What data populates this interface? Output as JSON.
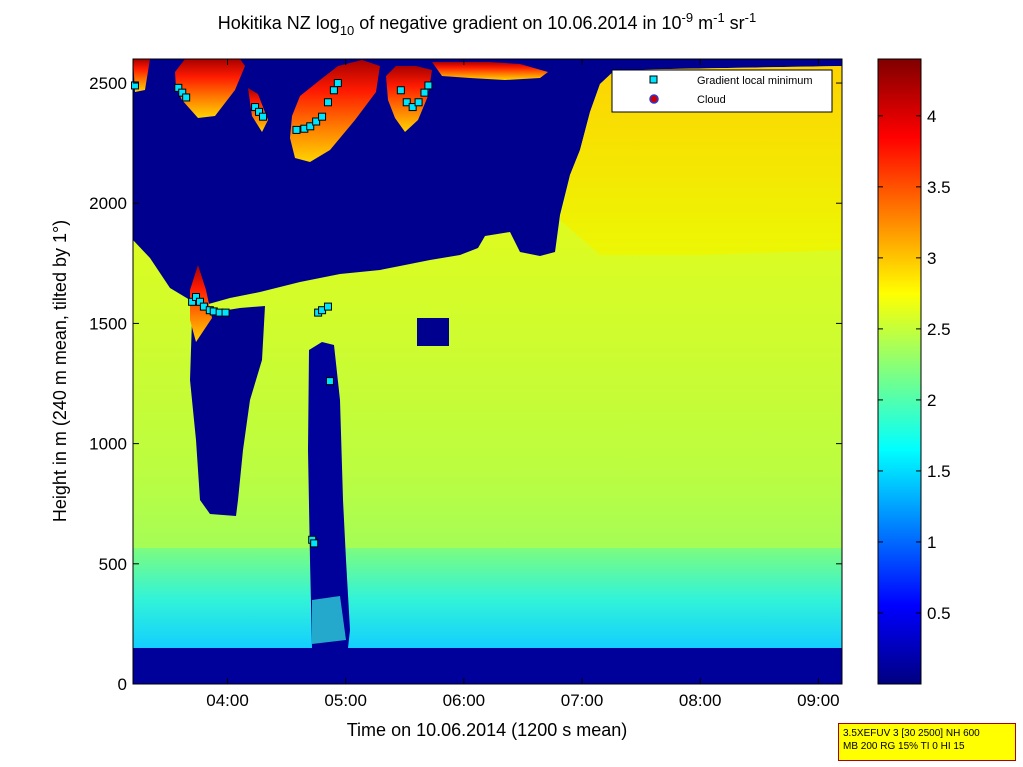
{
  "chart_data": {
    "type": "heatmap",
    "title": {
      "prefix": "Hokitika NZ log",
      "prefix_sub": "10",
      "middle": " of negative gradient on 10.06.2014 in 10",
      "exp1": "-9",
      "unit1": " m",
      "exp2": "-1",
      "unit2": " sr",
      "exp3": "-1"
    },
    "xlabel": "Time on 10.06.2014 (1200 s mean)",
    "ylabel": "Height in m (240 m mean, tilted by 1°)",
    "xlim": [
      "03:12",
      "09:12"
    ],
    "ylim": [
      0,
      2600
    ],
    "x_ticks": [
      "04:00",
      "05:00",
      "06:00",
      "07:00",
      "08:00",
      "09:00"
    ],
    "y_ticks": [
      0,
      500,
      1000,
      1500,
      2000,
      2500
    ],
    "colorbar": {
      "colormap": "jet",
      "range": [
        0,
        4.4
      ],
      "ticks": [
        0.5,
        1,
        1.5,
        2,
        2.5,
        3,
        3.5,
        4
      ],
      "tick_labels": [
        "0.5",
        "1",
        "1.5",
        "2",
        "2.5",
        "3",
        "3.5",
        "4"
      ]
    },
    "legend": {
      "placement": "top-right",
      "entries": [
        {
          "label": "Gradient local minimum",
          "marker": "square",
          "color": "#00e5ff"
        },
        {
          "label": "Cloud",
          "marker": "circle",
          "color": "#cc0000"
        }
      ]
    },
    "gradient_local_minima": [
      {
        "time": "03:13",
        "height": 2490
      },
      {
        "time": "03:35",
        "height": 2480
      },
      {
        "time": "03:37",
        "height": 2460
      },
      {
        "time": "03:39",
        "height": 2440
      },
      {
        "time": "03:42",
        "height": 1590
      },
      {
        "time": "03:44",
        "height": 1610
      },
      {
        "time": "03:46",
        "height": 1590
      },
      {
        "time": "03:48",
        "height": 1570
      },
      {
        "time": "03:51",
        "height": 1555
      },
      {
        "time": "03:53",
        "height": 1550
      },
      {
        "time": "03:56",
        "height": 1545
      },
      {
        "time": "03:59",
        "height": 1545
      },
      {
        "time": "04:14",
        "height": 2400
      },
      {
        "time": "04:16",
        "height": 2380
      },
      {
        "time": "04:18",
        "height": 2360
      },
      {
        "time": "04:35",
        "height": 2305
      },
      {
        "time": "04:39",
        "height": 2310
      },
      {
        "time": "04:42",
        "height": 2320
      },
      {
        "time": "04:45",
        "height": 2340
      },
      {
        "time": "04:48",
        "height": 2360
      },
      {
        "time": "04:51",
        "height": 2420
      },
      {
        "time": "04:54",
        "height": 2470
      },
      {
        "time": "04:56",
        "height": 2500
      },
      {
        "time": "04:43",
        "height": 600
      },
      {
        "time": "04:44",
        "height": 585
      },
      {
        "time": "04:46",
        "height": 1545
      },
      {
        "time": "04:48",
        "height": 1555
      },
      {
        "time": "04:51",
        "height": 1570
      },
      {
        "time": "04:52",
        "height": 1260
      },
      {
        "time": "05:28",
        "height": 2470
      },
      {
        "time": "05:31",
        "height": 2420
      },
      {
        "time": "05:34",
        "height": 2400
      },
      {
        "time": "05:37",
        "height": 2420
      },
      {
        "time": "05:40",
        "height": 2460
      },
      {
        "time": "05:42",
        "height": 2490
      }
    ],
    "regions": [
      {
        "description": "near-ground dark blue layer",
        "time_start": "03:12",
        "time_end": "09:12",
        "height_range": [
          0,
          150
        ],
        "value": 0.1
      },
      {
        "description": "boundary layer (cyan to green)",
        "time_start": "03:12",
        "time_end": "09:12",
        "height_range": [
          150,
          550
        ],
        "value_range": [
          1.3,
          2.1
        ]
      },
      {
        "description": "aerosol layer (green-yellow)",
        "time_start": "03:12",
        "time_end": "09:12",
        "height_range": [
          550,
          1800
        ],
        "value_range": [
          2.1,
          2.8
        ]
      },
      {
        "description": "elevated layer after 07:00 (yellow-orange)",
        "time_start": "06:45",
        "time_end": "09:12",
        "height_range": [
          1700,
          2550
        ],
        "value_range": [
          2.6,
          3.1
        ]
      },
      {
        "description": "cloud layer near top (red)",
        "time_start": "03:12",
        "time_end": "05:52",
        "height_range": [
          2250,
          2600
        ],
        "value_range": [
          3.5,
          4.4
        ]
      },
      {
        "description": "clear gap (dark blue)",
        "time_start": "03:40",
        "time_end": "04:17",
        "height_range": [
          700,
          1480
        ],
        "value": 0.1
      },
      {
        "description": "clear column (dark blue)",
        "time_start": "04:44",
        "time_end": "04:52",
        "height_range": [
          250,
          1380
        ],
        "value": 0.1
      }
    ]
  },
  "info_box": {
    "line1": "3.5XEFUV 3 [30 2500] NH 600",
    "line2": "MB 200 RG 15% TI 0 HI 15"
  }
}
